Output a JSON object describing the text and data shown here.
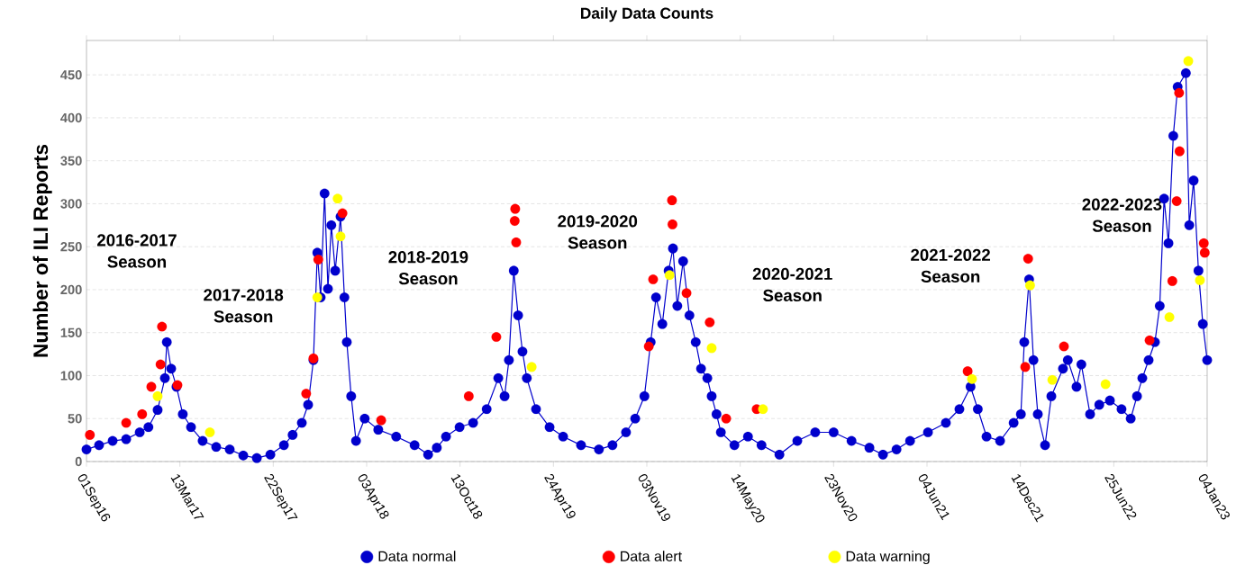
{
  "chart_data": {
    "type": "line",
    "title": "Daily Data Counts",
    "ylabel": "Number of ILI Reports",
    "xlim": [
      "2016-09-01",
      "2023-01-04"
    ],
    "ylim": [
      0,
      490
    ],
    "xticks": [
      {
        "value": "2016-09-01",
        "label": "01Sep16"
      },
      {
        "value": "2017-03-13",
        "label": "13Mar17"
      },
      {
        "value": "2017-09-22",
        "label": "22Sep17"
      },
      {
        "value": "2018-04-03",
        "label": "03Apr18"
      },
      {
        "value": "2018-10-13",
        "label": "13Oct18"
      },
      {
        "value": "2019-04-24",
        "label": "24Apr19"
      },
      {
        "value": "2019-11-03",
        "label": "03Nov19"
      },
      {
        "value": "2020-05-14",
        "label": "14May20"
      },
      {
        "value": "2020-11-23",
        "label": "23Nov20"
      },
      {
        "value": "2021-06-04",
        "label": "04Jun21"
      },
      {
        "value": "2021-12-14",
        "label": "14Dec21"
      },
      {
        "value": "2022-06-25",
        "label": "25Jun22"
      },
      {
        "value": "2023-01-04",
        "label": "04Jan23"
      }
    ],
    "yticks": [
      0,
      50,
      100,
      150,
      200,
      250,
      300,
      350,
      400,
      450
    ],
    "grid": "y",
    "legend": "bottom",
    "marker": "circle",
    "annotations": [
      "2016-2017 Season",
      "2017-2018 Season",
      "2018-2019 Season",
      "2019-2020 Season",
      "2020-2021 Season",
      "2021-2022 Season",
      "2022-2023 Season"
    ],
    "series": [
      {
        "name": "Data normal",
        "color": "#0000cc",
        "x": [
          "2016-09-01",
          "2016-09-27",
          "2016-10-25",
          "2016-11-22",
          "2016-12-20",
          "2017-01-07",
          "2017-01-26",
          "2017-02-10",
          "2017-02-14",
          "2017-02-23",
          "2017-03-06",
          "2017-03-19",
          "2017-04-05",
          "2017-04-29",
          "2017-05-27",
          "2017-06-24",
          "2017-07-22",
          "2017-08-19",
          "2017-09-16",
          "2017-10-14",
          "2017-11-01",
          "2017-11-20",
          "2017-12-03",
          "2017-12-14",
          "2017-12-22",
          "2017-12-29",
          "2018-01-06",
          "2018-01-13",
          "2018-01-20",
          "2018-01-28",
          "2018-02-08",
          "2018-02-16",
          "2018-02-21",
          "2018-03-02",
          "2018-03-12",
          "2018-03-30",
          "2018-04-27",
          "2018-06-03",
          "2018-07-11",
          "2018-08-08",
          "2018-08-26",
          "2018-09-14",
          "2018-10-12",
          "2018-11-09",
          "2018-12-07",
          "2018-12-31",
          "2019-01-13",
          "2019-01-22",
          "2019-02-01",
          "2019-02-10",
          "2019-02-19",
          "2019-02-28",
          "2019-03-19",
          "2019-04-16",
          "2019-05-14",
          "2019-06-20",
          "2019-07-27",
          "2019-08-24",
          "2019-09-21",
          "2019-10-10",
          "2019-10-29",
          "2019-11-11",
          "2019-11-22",
          "2019-12-05",
          "2019-12-18",
          "2019-12-27",
          "2020-01-05",
          "2020-01-17",
          "2020-01-30",
          "2020-02-12",
          "2020-02-23",
          "2020-03-07",
          "2020-03-16",
          "2020-03-26",
          "2020-04-04",
          "2020-05-02",
          "2020-05-30",
          "2020-06-27",
          "2020-08-03",
          "2020-09-09",
          "2020-10-16",
          "2020-11-23",
          "2020-12-30",
          "2021-02-05",
          "2021-03-05",
          "2021-04-02",
          "2021-04-30",
          "2021-06-06",
          "2021-07-13",
          "2021-08-10",
          "2021-09-02",
          "2021-09-17",
          "2021-10-05",
          "2021-11-02",
          "2021-11-30",
          "2021-12-15",
          "2021-12-22",
          "2022-01-01",
          "2022-01-10",
          "2022-01-19",
          "2022-02-03",
          "2022-02-16",
          "2022-03-12",
          "2022-03-22",
          "2022-04-09",
          "2022-04-19",
          "2022-05-07",
          "2022-05-26",
          "2022-06-17",
          "2022-07-11",
          "2022-07-30",
          "2022-08-12",
          "2022-08-23",
          "2022-09-05",
          "2022-09-18",
          "2022-09-28",
          "2022-10-07",
          "2022-10-16",
          "2022-10-26",
          "2022-11-04",
          "2022-11-21",
          "2022-11-28",
          "2022-12-07",
          "2022-12-17",
          "2022-12-26",
          "2023-01-04"
        ],
        "values": [
          14,
          19,
          24,
          26,
          34,
          40,
          60,
          97,
          139,
          108,
          87,
          55,
          40,
          24,
          17,
          14,
          7,
          4,
          8,
          19,
          31,
          45,
          66,
          118,
          243,
          191,
          312,
          201,
          275,
          222,
          285,
          191,
          139,
          76,
          24,
          50,
          37,
          29,
          19,
          8,
          16,
          29,
          40,
          45,
          61,
          97,
          76,
          118,
          222,
          170,
          128,
          97,
          61,
          40,
          29,
          19,
          14,
          19,
          34,
          50,
          76,
          139,
          191,
          160,
          222,
          248,
          181,
          233,
          170,
          139,
          108,
          97,
          76,
          55,
          34,
          19,
          29,
          19,
          8,
          24,
          34,
          34,
          24,
          16,
          8,
          14,
          24,
          34,
          45,
          61,
          87,
          61,
          29,
          24,
          45,
          55,
          139,
          212,
          118,
          55,
          19,
          76,
          108,
          118,
          87,
          113,
          55,
          66,
          71,
          61,
          50,
          76,
          97,
          118,
          139,
          181,
          306,
          254,
          379,
          436,
          452,
          275,
          327,
          222,
          160,
          118
        ]
      },
      {
        "name": "Data alert",
        "type": "scatter",
        "color": "#ff0000",
        "x": [
          "2016-09-08",
          "2016-11-22",
          "2016-12-25",
          "2017-01-13",
          "2017-02-01",
          "2017-02-04",
          "2017-03-08",
          "2017-11-29",
          "2017-12-14",
          "2017-12-24",
          "2018-02-12",
          "2018-05-03",
          "2018-10-31",
          "2018-12-27",
          "2019-02-03",
          "2019-02-04",
          "2019-02-06",
          "2019-11-07",
          "2019-11-16",
          "2019-12-25",
          "2019-12-26",
          "2020-01-24",
          "2020-03-12",
          "2020-04-15",
          "2020-06-17",
          "2021-08-27",
          "2021-12-24",
          "2021-12-30",
          "2022-03-14",
          "2022-09-07",
          "2022-10-24",
          "2022-11-02",
          "2022-11-07",
          "2022-11-08",
          "2022-12-28",
          "2022-12-30"
        ],
        "values": [
          31,
          45,
          55,
          87,
          113,
          157,
          89,
          79,
          120,
          235,
          289,
          48,
          76,
          145,
          280,
          294,
          255,
          134,
          212,
          304,
          276,
          196,
          162,
          50,
          61,
          105,
          110,
          236,
          134,
          141,
          210,
          303,
          429,
          361,
          254,
          243
        ]
      },
      {
        "name": "Data warning",
        "type": "scatter",
        "color": "#ffff00",
        "x": [
          "2017-01-26",
          "2017-05-14",
          "2017-12-22",
          "2018-02-02",
          "2018-02-08",
          "2019-03-10",
          "2019-12-20",
          "2020-03-16",
          "2020-06-30",
          "2021-09-05",
          "2022-01-03",
          "2022-02-18",
          "2022-06-08",
          "2022-10-18",
          "2022-11-26",
          "2022-12-20"
        ],
        "values": [
          76,
          34,
          191,
          306,
          262,
          110,
          217,
          132,
          61,
          96,
          205,
          95,
          90,
          168,
          466,
          211
        ]
      }
    ]
  }
}
